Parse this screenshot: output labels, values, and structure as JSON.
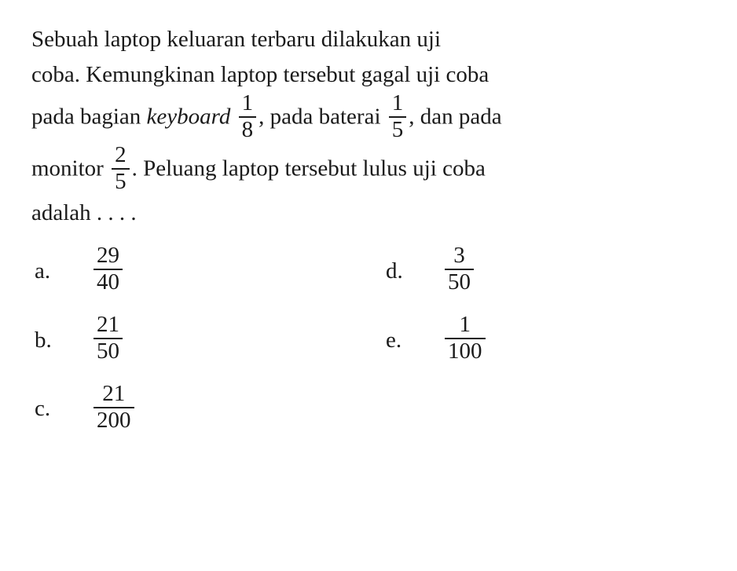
{
  "question": {
    "intro1": "Sebuah laptop keluaran terbaru dilakukan uji",
    "intro2": "coba. Kemungkinan laptop tersebut gagal uji coba",
    "line3_part1": "pada bagian ",
    "line3_italic": "keyboard ",
    "frac1_num": "1",
    "frac1_den": "8",
    "line3_part2": ", pada baterai ",
    "frac2_num": "1",
    "frac2_den": "5",
    "line3_part3": ", dan pada",
    "line4_part1": "monitor ",
    "frac3_num": "2",
    "frac3_den": "5",
    "line4_part2": ". Peluang laptop tersebut lulus uji coba",
    "line5": "adalah . . . ."
  },
  "options": {
    "a": {
      "letter": "a.",
      "num": "29",
      "den": "40"
    },
    "b": {
      "letter": "b.",
      "num": "21",
      "den": "50"
    },
    "c": {
      "letter": "c.",
      "num": "21",
      "den": "200"
    },
    "d": {
      "letter": "d.",
      "num": "3",
      "den": "50"
    },
    "e": {
      "letter": "e.",
      "num": "1",
      "den": "100"
    }
  },
  "colors": {
    "text": "#1a1a1a",
    "background": "#ffffff"
  },
  "typography": {
    "font_family": "Times New Roman",
    "font_size_pt": 22,
    "line_height": 1.55
  }
}
